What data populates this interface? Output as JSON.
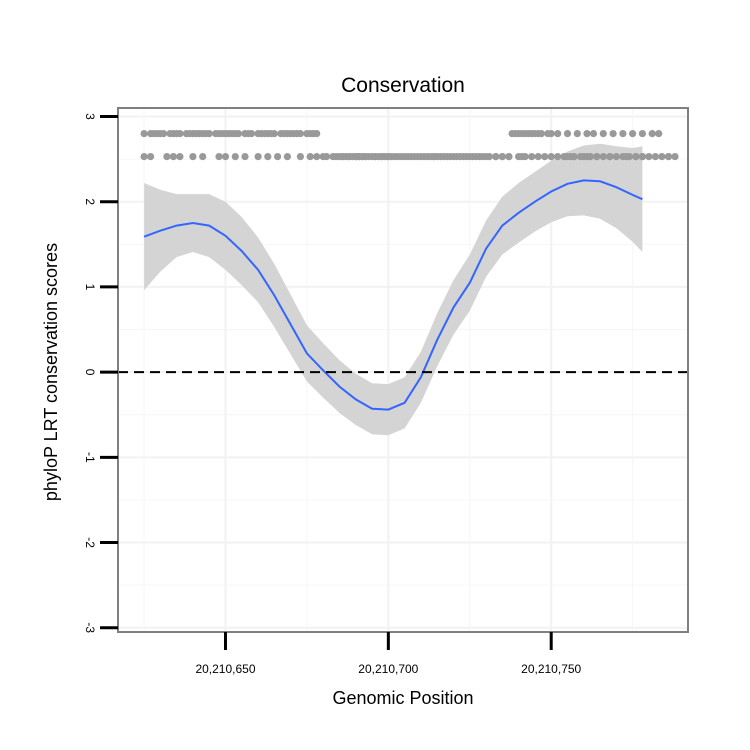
{
  "chart_data": {
    "type": "scatter",
    "title": "Conservation",
    "xlabel": "Genomic Position",
    "ylabel": "phyloP LRT conservation scores",
    "xlim": [
      20210617,
      20210792
    ],
    "ylim": [
      -3.05,
      3.1
    ],
    "x_ticks": [
      20210650,
      20210700,
      20210750
    ],
    "x_tick_labels": [
      "20,210,650",
      "20,210,700",
      "20,210,750"
    ],
    "y_ticks": [
      -3,
      -2,
      -1,
      0,
      1,
      2,
      3
    ],
    "y_tick_labels": [
      "-3",
      "-2",
      "-1",
      "0",
      "1",
      "2",
      "3"
    ],
    "reference_line": {
      "y": 0,
      "style": "dashed"
    },
    "grid": true,
    "point_color": "#999999",
    "smooth_color": "#3366FF",
    "band_color": "#D4D4D4",
    "points_x": [
      20210625,
      20210627,
      20210628,
      20210629,
      20210630,
      20210631,
      20210633,
      20210634,
      20210635,
      20210636,
      20210638,
      20210639,
      20210640,
      20210641,
      20210642,
      20210643,
      20210644,
      20210645,
      20210647,
      20210648,
      20210649,
      20210650,
      20210651,
      20210652,
      20210653,
      20210654,
      20210656,
      20210657,
      20210658,
      20210660,
      20210661,
      20210662,
      20210663,
      20210664,
      20210665,
      20210667,
      20210668,
      20210669,
      20210670,
      20210671,
      20210672,
      20210673,
      20210675,
      20210676,
      20210677,
      20210678,
      20210625,
      20210627,
      20210632,
      20210634,
      20210636,
      20210640,
      20210643,
      20210648,
      20210650,
      20210653,
      20210656,
      20210660,
      20210663,
      20210666,
      20210669,
      20210673,
      20210676,
      20210678,
      20210680,
      20210681,
      20210683,
      20210684,
      20210685,
      20210686,
      20210686,
      20210687,
      20210688,
      20210688,
      20210689,
      20210690,
      20210690,
      20210690,
      20210691,
      20210691,
      20210692,
      20210692,
      20210693,
      20210693,
      20210694,
      20210695,
      20210696,
      20210696,
      20210697,
      20210698,
      20210698,
      20210699,
      20210700,
      20210700,
      20210701,
      20210702,
      20210703,
      20210704,
      20210705,
      20210706,
      20210707,
      20210708,
      20210709,
      20210710,
      20210711,
      20210712,
      20210713,
      20210714,
      20210714,
      20210715,
      20210716,
      20210717,
      20210718,
      20210719,
      20210720,
      20210721,
      20210722,
      20210723,
      20210724,
      20210725,
      20210726,
      20210727,
      20210728,
      20210730,
      20210733,
      20210735,
      20210737,
      20210741,
      20210738,
      20210739,
      20210740,
      20210741,
      20210742,
      20210743,
      20210744,
      20210745,
      20210746,
      20210747,
      20210749,
      20210750,
      20210752,
      20210755,
      20210758,
      20210761,
      20210763,
      20210766,
      20210769,
      20210772,
      20210775,
      20210778,
      20210781,
      20210783,
      20210729,
      20210731,
      20210733,
      20210735,
      20210737,
      20210740,
      20210742,
      20210744,
      20210746,
      20210748,
      20210750,
      20210752,
      20210754,
      20210757,
      20210760,
      20210762,
      20210764,
      20210766,
      20210768,
      20210770,
      20210772,
      20210774,
      20210776,
      20210778,
      20210780,
      20210782,
      20210784,
      20210786,
      20210788,
      20210754,
      20210755,
      20210756,
      20210757,
      20210759,
      20210761,
      20210762,
      20210764,
      20210768,
      20210773,
      20210776,
      20210778,
      20210786
    ],
    "points_y": [
      2.8,
      2.8,
      2.8,
      2.8,
      2.8,
      2.8,
      2.8,
      2.8,
      2.8,
      2.8,
      2.8,
      2.8,
      2.8,
      2.8,
      2.8,
      2.8,
      2.8,
      2.8,
      2.8,
      2.8,
      2.8,
      2.8,
      2.8,
      2.8,
      2.8,
      2.8,
      2.8,
      2.8,
      2.8,
      2.8,
      2.8,
      2.8,
      2.8,
      2.8,
      2.8,
      2.8,
      2.8,
      2.8,
      2.8,
      2.8,
      2.8,
      2.8,
      2.8,
      2.8,
      2.8,
      2.8,
      2.53,
      2.53,
      2.53,
      2.53,
      2.53,
      2.53,
      2.53,
      2.53,
      2.53,
      2.53,
      2.53,
      2.53,
      2.53,
      2.53,
      2.53,
      2.53,
      2.53,
      2.53,
      2.53,
      2.53,
      2.53,
      2.53,
      2.53,
      2.53,
      2.53,
      2.53,
      2.53,
      2.53,
      2.53,
      2.53,
      2.53,
      2.53,
      2.53,
      2.53,
      2.53,
      2.53,
      2.53,
      2.53,
      2.53,
      2.53,
      2.53,
      2.53,
      2.53,
      2.53,
      2.53,
      2.53,
      2.53,
      2.53,
      2.53,
      2.53,
      2.53,
      2.53,
      2.53,
      2.53,
      2.53,
      2.53,
      2.53,
      2.53,
      2.53,
      2.53,
      2.53,
      2.53,
      2.53,
      2.53,
      2.53,
      2.53,
      2.53,
      2.53,
      2.53,
      2.53,
      2.53,
      2.53,
      2.53,
      2.53,
      2.53,
      2.53,
      2.53,
      2.53,
      2.53,
      2.53,
      2.53,
      2.53,
      2.8,
      2.8,
      2.8,
      2.8,
      2.8,
      2.8,
      2.8,
      2.8,
      2.8,
      2.8,
      2.8,
      2.8,
      2.8,
      2.8,
      2.8,
      2.8,
      2.8,
      2.8,
      2.8,
      2.8,
      2.8,
      2.8,
      2.8,
      2.8,
      2.53,
      2.53,
      2.53,
      2.53,
      2.53,
      2.53,
      2.53,
      2.53,
      2.53,
      2.53,
      2.53,
      2.53,
      2.53,
      2.53,
      2.53,
      2.53,
      2.53,
      2.53,
      2.53,
      2.53,
      2.53,
      2.53,
      2.53,
      2.53,
      2.53,
      2.53,
      2.53,
      2.53,
      2.53,
      2.53,
      2.53,
      2.53,
      2.53,
      2.53,
      2.53,
      2.53,
      2.53,
      2.53,
      2.53,
      2.53,
      2.53,
      2.53
    ]
  }
}
